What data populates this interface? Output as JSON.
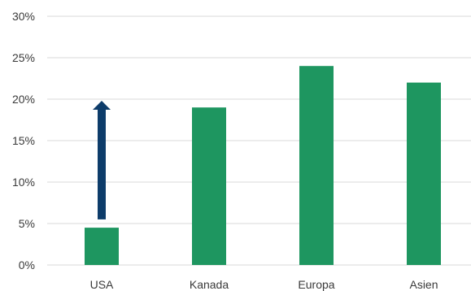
{
  "chart_data": {
    "type": "bar",
    "categories": [
      "USA",
      "Kanada",
      "Europa",
      "Asien"
    ],
    "values": [
      4.5,
      19,
      24,
      22
    ],
    "y_ticks": [
      "0%",
      "5%",
      "10%",
      "15%",
      "20%",
      "25%",
      "30%"
    ],
    "ylim": [
      0,
      30
    ],
    "grid": true,
    "bar_color": "#1e9660",
    "annotation": {
      "type": "up-arrow",
      "category": "USA",
      "from_value": 5.5,
      "to_value": 19.8,
      "color": "#0d3c6a"
    }
  }
}
